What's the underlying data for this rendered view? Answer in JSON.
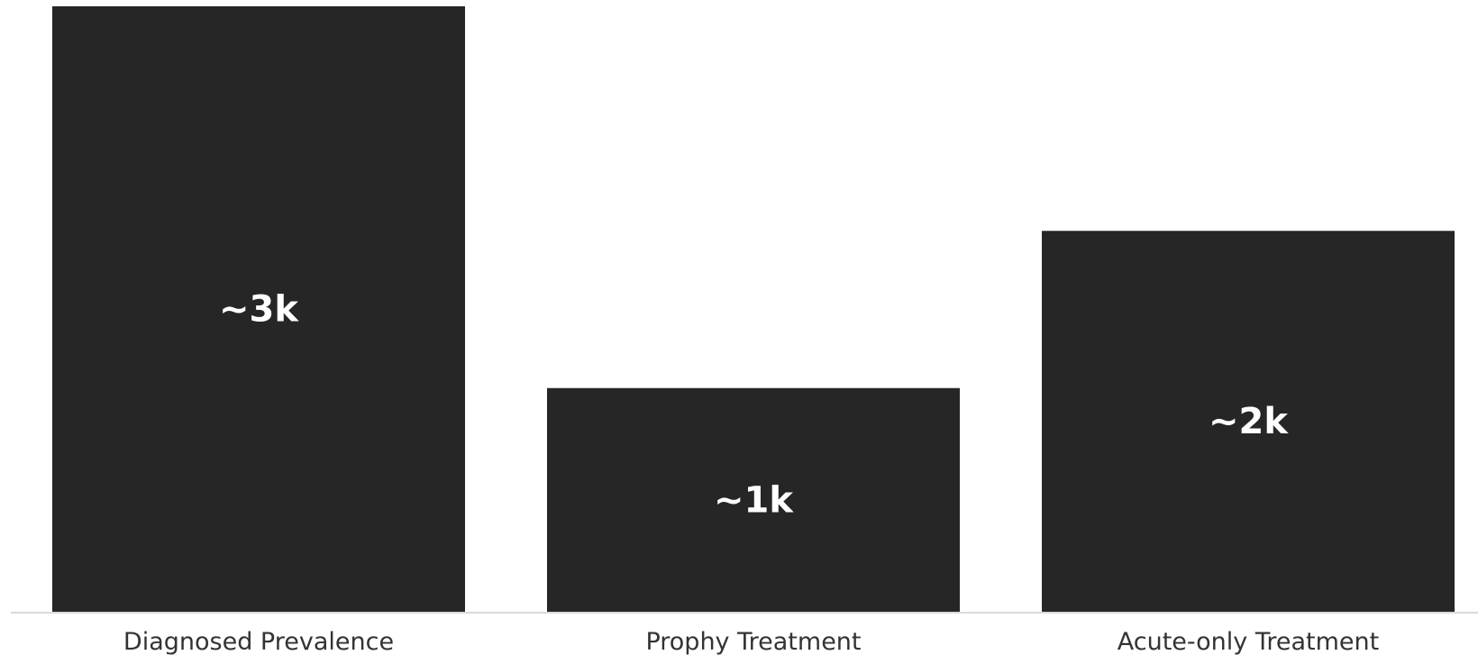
{
  "chart_data": {
    "type": "bar",
    "categories": [
      "Diagnosed Prevalence",
      "Prophy Treatment",
      "Acute-only Treatment"
    ],
    "values": [
      2.7,
      1.0,
      1.7
    ],
    "data_labels": [
      "~3k",
      "~1k",
      "~2k"
    ],
    "title": "",
    "xlabel": "",
    "ylabel": "",
    "ylim": [
      0,
      2.7
    ],
    "grid": false,
    "legend": "none",
    "colors": {
      "bar": "#262626",
      "value_label": "#ffffff",
      "axis_line": "#d9d9d9",
      "tick_label": "#333333"
    }
  }
}
